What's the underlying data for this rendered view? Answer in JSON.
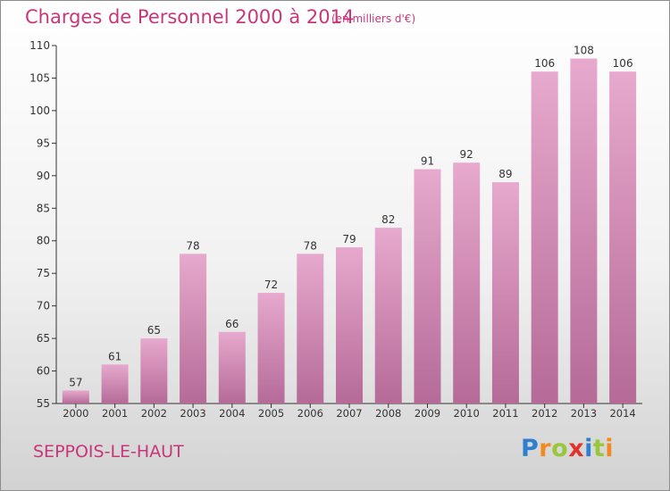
{
  "title": "Charges de Personnel 2000 à 2014",
  "subtitle": "(en milliers d'€)",
  "location": "SEPPOIS-LE-HAUT",
  "brand": {
    "letters": [
      {
        "ch": "P",
        "color": "#2f7fd0"
      },
      {
        "ch": "r",
        "color": "#f28a1e"
      },
      {
        "ch": "o",
        "color": "#9ac73a"
      },
      {
        "ch": "x",
        "color": "#e2322d"
      },
      {
        "ch": "i",
        "color": "#2f7fd0"
      },
      {
        "ch": "t",
        "color": "#9ac73a"
      },
      {
        "ch": "i",
        "color": "#f28a1e"
      }
    ]
  },
  "colors": {
    "bar_top": "#e7a9cd",
    "bar_bottom": "#b56a98",
    "axis": "#333333",
    "accent": "#c8367a"
  },
  "chart_data": {
    "type": "bar",
    "categories": [
      "2000",
      "2001",
      "2002",
      "2003",
      "2004",
      "2005",
      "2006",
      "2007",
      "2008",
      "2009",
      "2010",
      "2011",
      "2012",
      "2013",
      "2014"
    ],
    "values": [
      57,
      61,
      65,
      78,
      66,
      72,
      78,
      79,
      82,
      91,
      92,
      89,
      106,
      108,
      106
    ],
    "ylim": [
      55,
      110
    ],
    "yticks": [
      55,
      60,
      65,
      70,
      75,
      80,
      85,
      90,
      95,
      100,
      105,
      110
    ],
    "grid": false,
    "legend": "none"
  }
}
